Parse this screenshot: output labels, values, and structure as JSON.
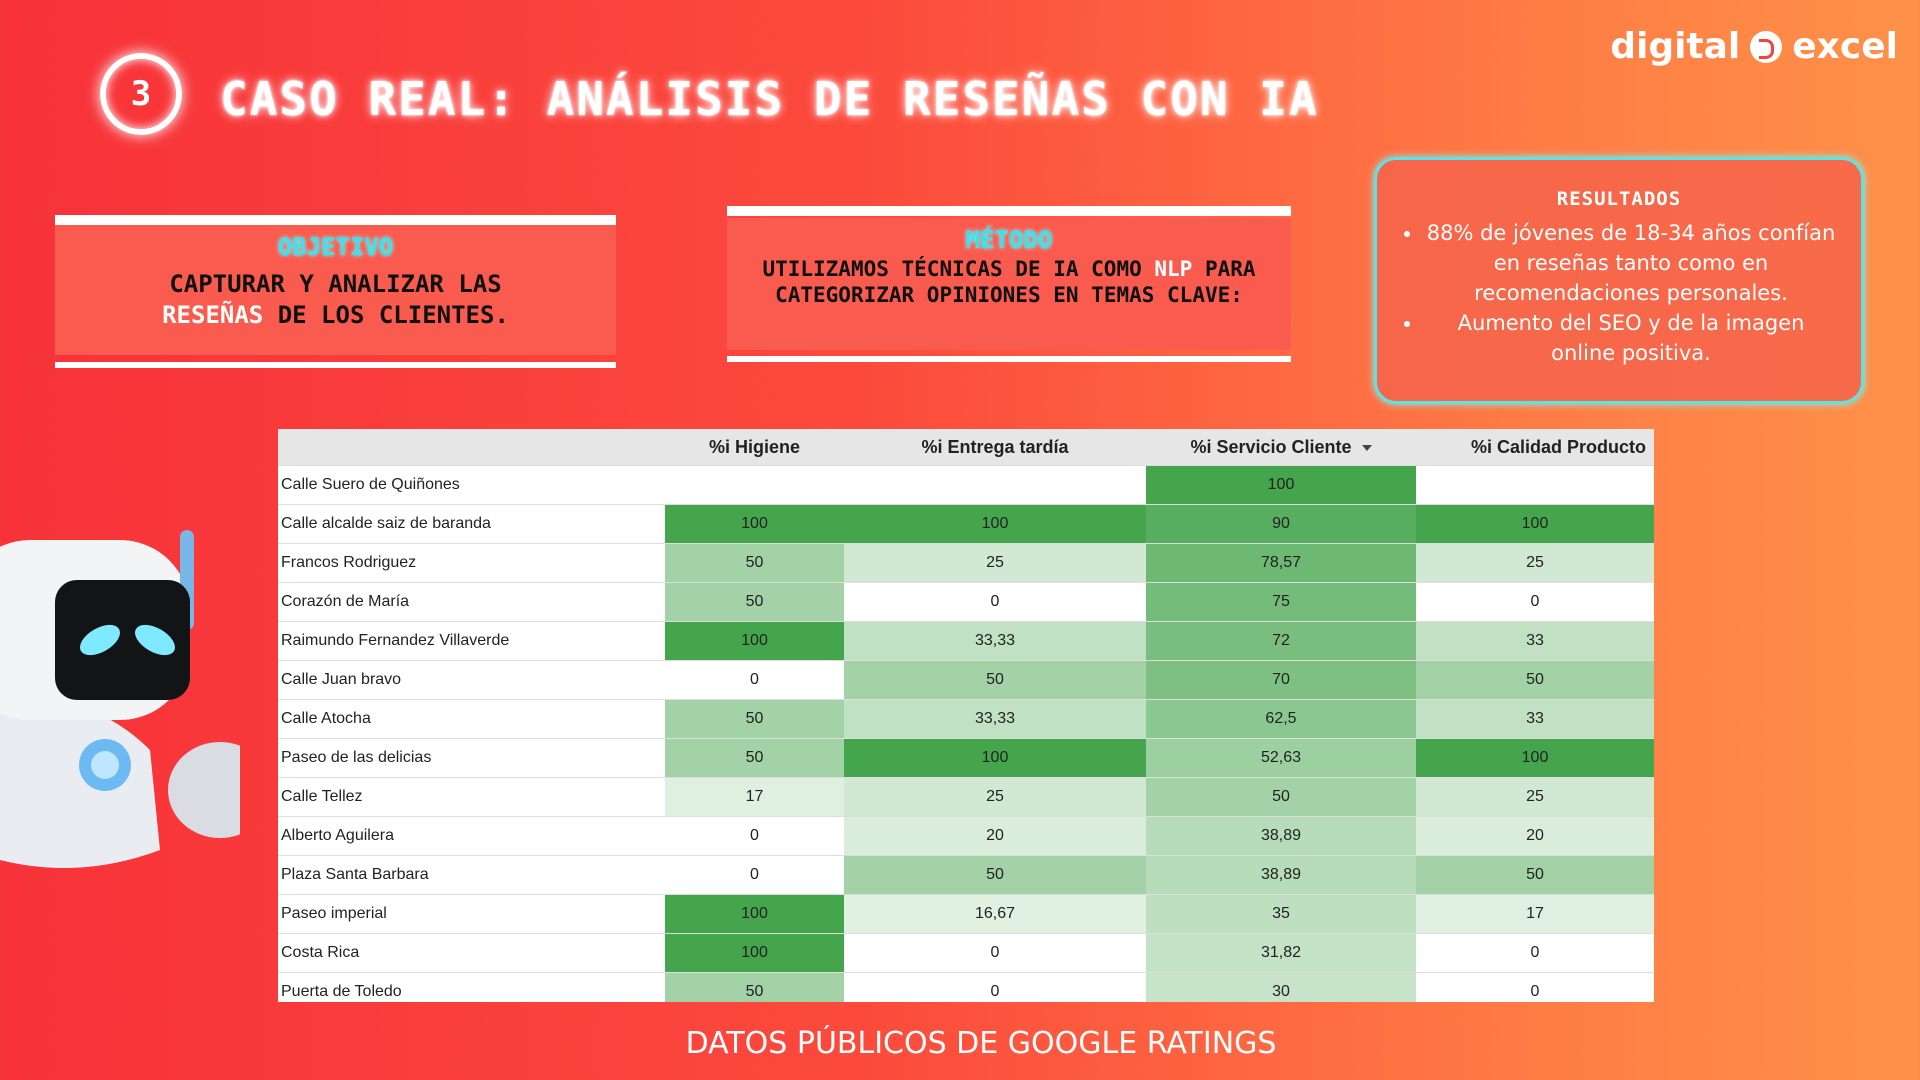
{
  "logo": {
    "left": "digital",
    "right": "excel"
  },
  "header": {
    "number": "3",
    "title": "CASO REAL: ANÁLISIS DE RESEÑAS CON IA"
  },
  "objective": {
    "label": "OBJETIVO",
    "text": [
      "CAPTURAR Y ANALIZAR LAS",
      "RESEÑAS",
      "DE LOS CLIENTES."
    ]
  },
  "method": {
    "label": "MÉTODO",
    "text": [
      "UTILIZAMOS TÉCNICAS DE IA COMO",
      "NLP",
      "PARA CATEGORIZAR OPINIONES EN TEMAS CLAVE:"
    ]
  },
  "results": {
    "label": "RESULTADOS",
    "items": [
      "88% de jóvenes de 18-34 años confían en reseñas tanto como en recomendaciones personales.",
      "Aumento del SEO y de la imagen online positiva."
    ]
  },
  "table": {
    "columns": [
      "%i Higiene",
      "%i Entrega tardía",
      "%i Servicio Cliente",
      "%i Calidad Producto"
    ],
    "rows": [
      [
        "Calle Suero de Quiñones",
        null,
        null,
        "100",
        null
      ],
      [
        "Calle alcalde saiz de baranda",
        "100",
        "100",
        "90",
        "100"
      ],
      [
        "Francos Rodriguez",
        "50",
        "25",
        "78,57",
        "25"
      ],
      [
        "Corazón de María",
        "50",
        "0",
        "75",
        "0"
      ],
      [
        "Raimundo Fernandez Villaverde",
        "100",
        "33,33",
        "72",
        "33"
      ],
      [
        "Calle Juan bravo",
        "0",
        "50",
        "70",
        "50"
      ],
      [
        "Calle Atocha",
        "50",
        "33,33",
        "62,5",
        "33"
      ],
      [
        "Paseo de las delicias",
        "50",
        "100",
        "52,63",
        "100"
      ],
      [
        "Calle Tellez",
        "17",
        "25",
        "50",
        "25"
      ],
      [
        "Alberto Aguilera",
        "0",
        "20",
        "38,89",
        "20"
      ],
      [
        "Plaza Santa Barbara",
        "0",
        "50",
        "38,89",
        "50"
      ],
      [
        "Paseo imperial",
        "100",
        "16,67",
        "35",
        "17"
      ],
      [
        "Costa Rica",
        "100",
        "0",
        "31,82",
        "0"
      ],
      [
        "Puerta de Toledo",
        "50",
        "0",
        "30",
        "0"
      ]
    ]
  },
  "footer": "DATOS PÚBLICOS DE GOOGLE RATINGS"
}
